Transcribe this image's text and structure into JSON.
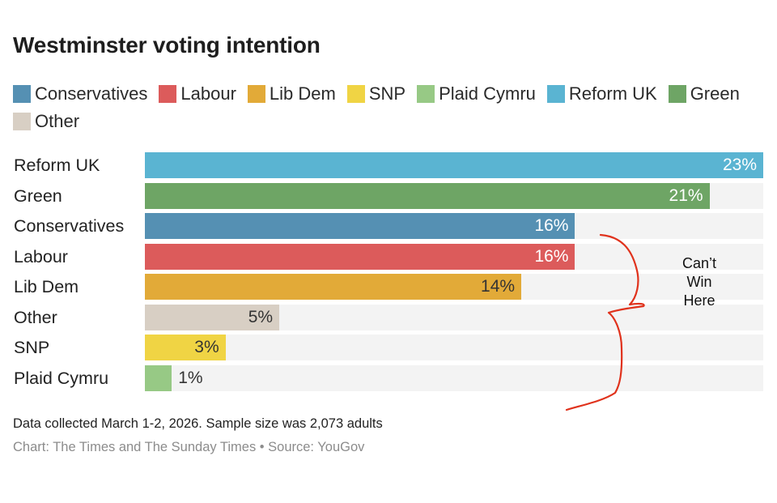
{
  "chart_data": {
    "type": "bar",
    "orientation": "horizontal",
    "title": "Westminster voting intention",
    "xlabel": "",
    "ylabel": "",
    "xlim": [
      0,
      23
    ],
    "grid": false,
    "legend_placement": "top",
    "legend": [
      {
        "name": "Conservatives",
        "color": "#5590b3"
      },
      {
        "name": "Labour",
        "color": "#dc5b5b"
      },
      {
        "name": "Lib Dem",
        "color": "#e2aa38"
      },
      {
        "name": "SNP",
        "color": "#f0d444"
      },
      {
        "name": "Plaid Cymru",
        "color": "#97c985"
      },
      {
        "name": "Reform UK",
        "color": "#5ab4d2"
      },
      {
        "name": "Green",
        "color": "#6ea565"
      },
      {
        "name": "Other",
        "color": "#d8cfc4"
      }
    ],
    "categories": [
      "Reform UK",
      "Green",
      "Conservatives",
      "Labour",
      "Lib Dem",
      "Other",
      "SNP",
      "Plaid Cymru"
    ],
    "values": [
      23,
      21,
      16,
      16,
      14,
      5,
      3,
      1
    ],
    "value_labels": [
      "23%",
      "21%",
      "16%",
      "16%",
      "14%",
      "5%",
      "3%",
      "1%"
    ],
    "colors": [
      "#5ab4d2",
      "#6ea565",
      "#5590b3",
      "#dc5b5b",
      "#e2aa38",
      "#d8cfc4",
      "#f0d444",
      "#97c985"
    ],
    "label_colors": [
      "#ffffff",
      "#ffffff",
      "#ffffff",
      "#ffffff",
      "#333333",
      "#333333",
      "#333333",
      "#333333"
    ],
    "annotations": [
      {
        "text_lines": [
          "Can’t",
          "Win",
          "Here"
        ],
        "type": "handwritten-brace",
        "color": "#e0321c",
        "spans_categories": [
          "Labour",
          "Lib Dem",
          "Other",
          "SNP",
          "Plaid Cymru"
        ]
      }
    ]
  },
  "footer": {
    "note": "Data collected March 1-2, 2026. Sample size was 2,073 adults",
    "source": "Chart: The Times and The Sunday Times • Source: YouGov"
  }
}
